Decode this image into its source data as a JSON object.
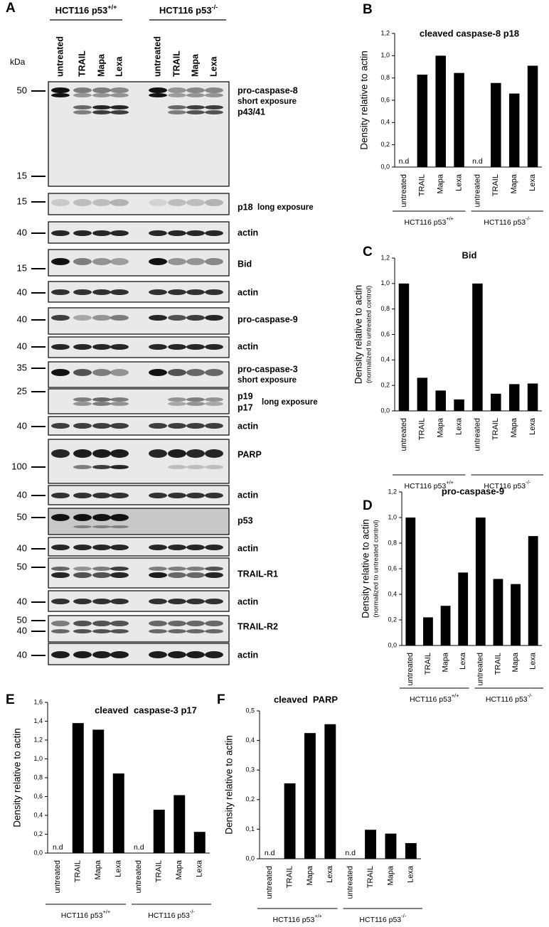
{
  "panel_a": {
    "letter": "A",
    "groups": [
      {
        "text": "HCT116 p53",
        "sup": "+/+"
      },
      {
        "text": "HCT116 p53",
        "sup": "-/-"
      }
    ],
    "lanes": [
      "untreated",
      "TRAIL",
      "Mapa",
      "Lexa",
      "untreated",
      "TRAIL",
      "Mapa",
      "Lexa"
    ],
    "unit": "kDa",
    "blots": [
      {
        "markers": [
          "50",
          "15"
        ],
        "labels": [
          "pro-caspase-8",
          "short exposure",
          "p43/41"
        ]
      },
      {
        "markers": [
          "15"
        ],
        "labels": [
          "p18",
          "long exposure"
        ]
      },
      {
        "markers": [
          "40"
        ],
        "labels": [
          "actin"
        ]
      },
      {
        "markers": [
          "15"
        ],
        "labels": [
          "Bid"
        ]
      },
      {
        "markers": [
          "40"
        ],
        "labels": [
          "actin"
        ]
      },
      {
        "markers": [
          "40"
        ],
        "labels": [
          "pro-caspase-9"
        ]
      },
      {
        "markers": [
          "40"
        ],
        "labels": [
          "actin"
        ]
      },
      {
        "markers": [
          "35"
        ],
        "labels": [
          "pro-caspase-3",
          "short exposure"
        ]
      },
      {
        "markers": [
          "25"
        ],
        "labels": [
          "p19",
          "p17",
          "long exposure"
        ]
      },
      {
        "markers": [
          "40"
        ],
        "labels": [
          "actin"
        ]
      },
      {
        "markers": [
          "100"
        ],
        "labels": [
          "PARP"
        ]
      },
      {
        "markers": [
          "40"
        ],
        "labels": [
          "actin"
        ]
      },
      {
        "markers": [
          "50"
        ],
        "labels": [
          "p53"
        ]
      },
      {
        "markers": [
          "40"
        ],
        "labels": [
          "actin"
        ]
      },
      {
        "markers": [
          "50"
        ],
        "labels": [
          "TRAIL-R1"
        ]
      },
      {
        "markers": [
          "40"
        ],
        "labels": [
          "actin"
        ]
      },
      {
        "markers": [
          "50",
          "40"
        ],
        "labels": [
          "TRAIL-R2"
        ]
      },
      {
        "markers": [
          "40"
        ],
        "labels": [
          "actin"
        ]
      }
    ]
  },
  "chart_data": [
    {
      "type": "bar",
      "letter": "B",
      "title": "cleaved caspase-8 p18",
      "ylabel": "Density relative to actin",
      "color": "#000000",
      "categories": [
        "untreated",
        "TRAIL",
        "Mapa",
        "Lexa",
        "untreated",
        "TRAIL",
        "Mapa",
        "Lexa"
      ],
      "values": [
        null,
        0.83,
        1.0,
        0.845,
        null,
        0.755,
        0.66,
        0.91
      ],
      "value_labels": [
        "n.d",
        null,
        null,
        null,
        "n.d",
        null,
        null,
        null
      ],
      "ylim": [
        0,
        1.2
      ],
      "yticks": [
        {
          "value": 0,
          "label": "0,0"
        },
        {
          "value": 0.2,
          "label": "0,2"
        },
        {
          "value": 0.4,
          "label": "0,4"
        },
        {
          "value": 0.6,
          "label": "0,6"
        },
        {
          "value": 0.8,
          "label": "0,8"
        },
        {
          "value": 1.0,
          "label": "1,0"
        },
        {
          "value": 1.2,
          "label": "1,2"
        }
      ],
      "groups": [
        {
          "text": "HCT116 p53",
          "sup": "+/+"
        },
        {
          "text": "HCT116 p53",
          "sup": "-/-"
        }
      ]
    },
    {
      "type": "bar",
      "letter": "C",
      "title": "Bid",
      "ylabel": "Density relative to actin",
      "ylabel_note": "(normalized to untreated control)",
      "color": "#000000",
      "categories": [
        "untreated",
        "TRAIL",
        "Mapa",
        "Lexa",
        "untreated",
        "TRAIL",
        "Mapa",
        "Lexa"
      ],
      "values": [
        1.0,
        0.26,
        0.16,
        0.09,
        1.0,
        0.135,
        0.21,
        0.215
      ],
      "ylim": [
        0,
        1.2
      ],
      "yticks": [
        {
          "value": 0,
          "label": "0,0"
        },
        {
          "value": 0.2,
          "label": "0,2"
        },
        {
          "value": 0.4,
          "label": "0,4"
        },
        {
          "value": 0.6,
          "label": "0,6"
        },
        {
          "value": 0.8,
          "label": "0,8"
        },
        {
          "value": 1.0,
          "label": "1,0"
        },
        {
          "value": 1.2,
          "label": "1,2"
        }
      ],
      "groups": [
        {
          "text": "HCT116 p53",
          "sup": "+/+"
        },
        {
          "text": "HCT116 p53",
          "sup": "-/-"
        }
      ]
    },
    {
      "type": "bar",
      "letter": "D",
      "title": "pro-caspase-9",
      "ylabel": "Density relative to actin",
      "ylabel_note": "(normalized to untreated control)",
      "color": "#000000",
      "categories": [
        "untreated",
        "TRAIL",
        "Mapa",
        "Lexa",
        "untreated",
        "TRAIL",
        "Mapa",
        "Lexa"
      ],
      "values": [
        1.0,
        0.22,
        0.31,
        0.57,
        1.0,
        0.52,
        0.48,
        0.855
      ],
      "ylim": [
        0,
        1.2
      ],
      "yticks": [
        {
          "value": 0,
          "label": "0,0"
        },
        {
          "value": 0.2,
          "label": "0,2"
        },
        {
          "value": 0.4,
          "label": "0,4"
        },
        {
          "value": 0.6,
          "label": "0,6"
        },
        {
          "value": 0.8,
          "label": "0,8"
        },
        {
          "value": 1.0,
          "label": "1,0"
        },
        {
          "value": 1.2,
          "label": "1,2"
        }
      ],
      "groups": [
        {
          "text": "HCT116 p53",
          "sup": "+/+"
        },
        {
          "text": "HCT116 p53",
          "sup": "-/-"
        }
      ]
    },
    {
      "type": "bar",
      "letter": "E",
      "title": "cleaved  caspase-3 p17",
      "ylabel": "Density relative to actin",
      "color": "#000000",
      "categories": [
        "untreated",
        "TRAIL",
        "Mapa",
        "Lexa",
        "untreated",
        "TRAIL",
        "Mapa",
        "Lexa"
      ],
      "values": [
        null,
        1.38,
        1.31,
        0.845,
        null,
        0.46,
        0.615,
        0.225
      ],
      "value_labels": [
        "n.d",
        null,
        null,
        null,
        "n.d",
        null,
        null,
        null
      ],
      "ylim": [
        0,
        1.6
      ],
      "yticks": [
        {
          "value": 0,
          "label": "0,0"
        },
        {
          "value": 0.2,
          "label": "0,2"
        },
        {
          "value": 0.4,
          "label": "0,4"
        },
        {
          "value": 0.6,
          "label": "0,6"
        },
        {
          "value": 0.8,
          "label": "0,8"
        },
        {
          "value": 1.0,
          "label": "1,0"
        },
        {
          "value": 1.2,
          "label": "1,2"
        },
        {
          "value": 1.4,
          "label": "1,4"
        },
        {
          "value": 1.6,
          "label": "1,6"
        }
      ],
      "groups": [
        {
          "text": "HCT116 p53",
          "sup": "+/+"
        },
        {
          "text": "HCT116 p53",
          "sup": "-/-"
        }
      ]
    },
    {
      "type": "bar",
      "letter": "F",
      "title": "cleaved  PARP",
      "ylabel": "Density relative to actin",
      "color": "#000000",
      "categories": [
        "untreated",
        "TRAIL",
        "Mapa",
        "Lexa",
        "untreated",
        "TRAIL",
        "Mapa",
        "Lexa"
      ],
      "values": [
        null,
        0.255,
        0.425,
        0.455,
        null,
        0.098,
        0.085,
        0.053
      ],
      "value_labels": [
        "n.d",
        null,
        null,
        null,
        "n.d",
        null,
        null,
        null
      ],
      "ylim": [
        0,
        0.5
      ],
      "yticks": [
        {
          "value": 0,
          "label": "0,0"
        },
        {
          "value": 0.1,
          "label": "0,1"
        },
        {
          "value": 0.2,
          "label": "0,2"
        },
        {
          "value": 0.3,
          "label": "0,3"
        },
        {
          "value": 0.4,
          "label": "0,4"
        },
        {
          "value": 0.5,
          "label": "0,5"
        }
      ],
      "groups": [
        {
          "text": "HCT116 p53",
          "sup": "+/+"
        },
        {
          "text": "HCT116 p53",
          "sup": "-/-"
        }
      ]
    }
  ]
}
